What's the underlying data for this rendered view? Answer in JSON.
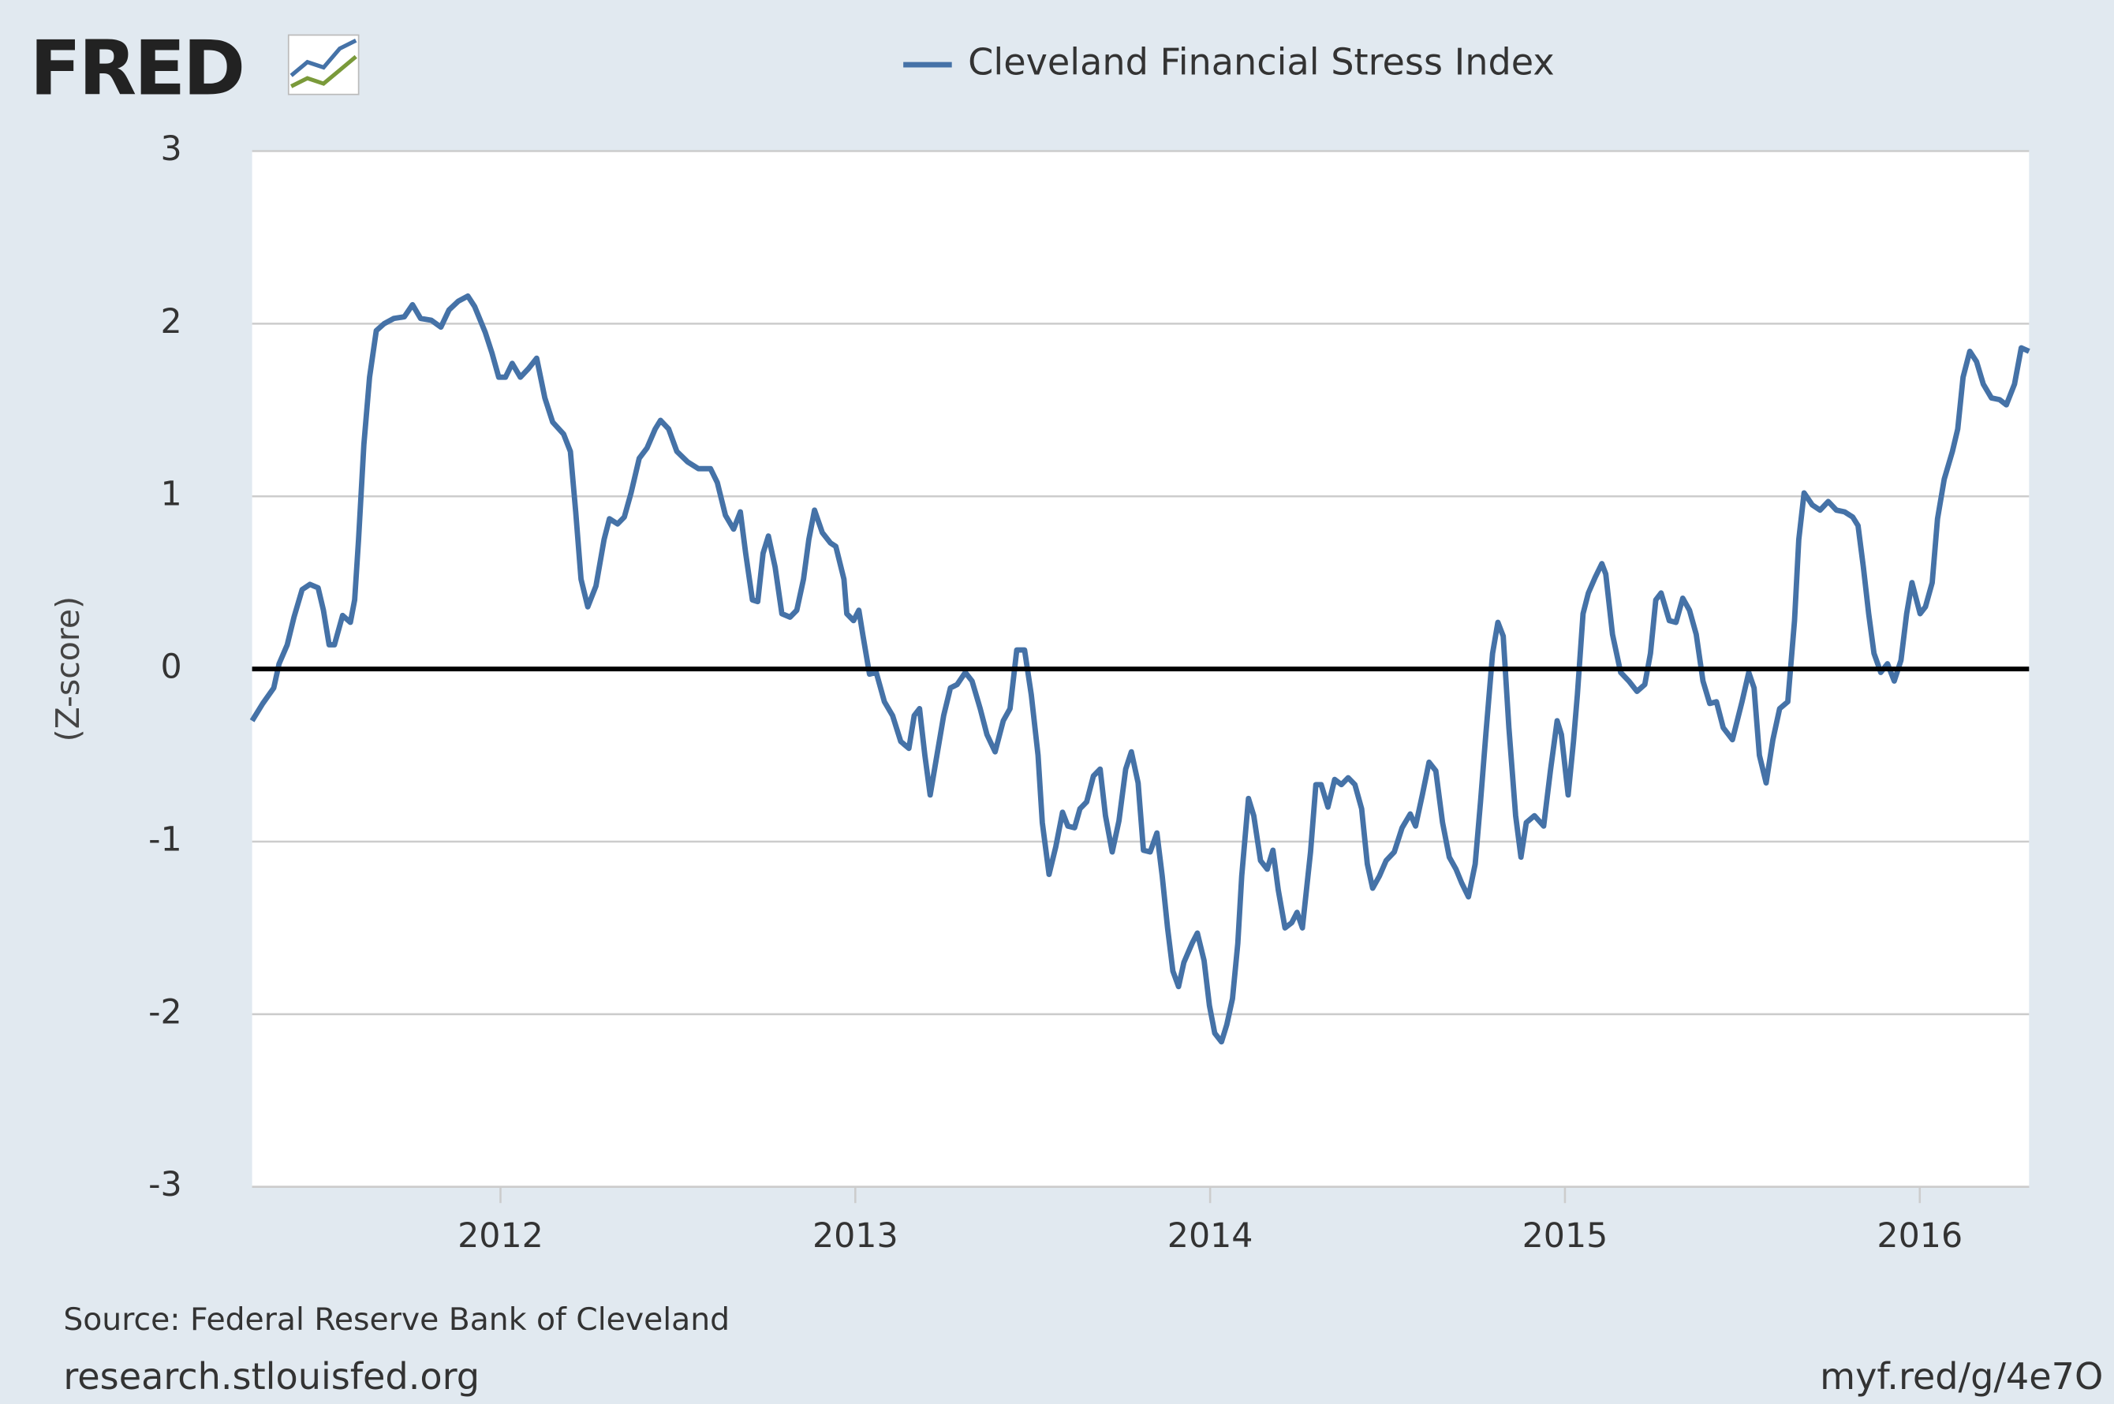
{
  "logo": "FRED",
  "source": "Source: Federal Reserve Bank of Cleveland",
  "site": "research.stlouisfed.org",
  "short_link": "myf.red/g/4e7O",
  "chart_data": {
    "type": "line",
    "y_label": "(Z-score)",
    "ylim": [
      -3,
      3
    ],
    "yticks": [
      3,
      2,
      1,
      0,
      -1,
      -2,
      -3
    ],
    "xlim": [
      2011.3,
      2016.308
    ],
    "xticks": [
      2012,
      2013,
      2014,
      2015,
      2016
    ],
    "grid": true,
    "zero_line": true,
    "legend": "top",
    "x": [
      2011.3,
      2011.33,
      2011.361,
      2011.376,
      2011.399,
      2011.418,
      2011.441,
      2011.463,
      2011.486,
      2011.501,
      2011.517,
      2011.532,
      2011.555,
      2011.577,
      2011.589,
      2011.6,
      2011.615,
      2011.631,
      2011.65,
      2011.672,
      2011.699,
      2011.729,
      2011.752,
      2011.775,
      2011.805,
      2011.832,
      2011.855,
      2011.881,
      2011.908,
      2011.927,
      2011.957,
      2011.976,
      2011.995,
      2012.014,
      2012.033,
      2012.056,
      2012.079,
      2012.102,
      2012.125,
      2012.147,
      2012.178,
      2012.197,
      2012.212,
      2012.227,
      2012.246,
      2012.269,
      2012.292,
      2012.307,
      2012.33,
      2012.349,
      2012.368,
      2012.391,
      2012.413,
      2012.436,
      2012.451,
      2012.474,
      2012.497,
      2012.527,
      2012.558,
      2012.592,
      2012.611,
      2012.634,
      2012.657,
      2012.676,
      2012.691,
      2012.71,
      2012.725,
      2012.74,
      2012.755,
      2012.774,
      2012.793,
      2012.816,
      2012.835,
      2012.854,
      2012.869,
      2012.885,
      2012.907,
      2012.93,
      2012.945,
      2012.968,
      2012.976,
      2012.995,
      2013.01,
      2013.021,
      2013.04,
      2013.059,
      2013.082,
      2013.105,
      2013.128,
      2013.151,
      2013.166,
      2013.181,
      2013.196,
      2013.211,
      2013.23,
      2013.249,
      2013.268,
      2013.287,
      2013.31,
      2013.329,
      2013.352,
      2013.371,
      2013.394,
      2013.417,
      2013.436,
      2013.455,
      2013.477,
      2013.496,
      2013.515,
      2013.527,
      2013.546,
      2013.565,
      2013.584,
      2013.599,
      2013.618,
      2013.633,
      2013.652,
      2013.671,
      2013.69,
      2013.705,
      2013.724,
      2013.743,
      2013.762,
      2013.778,
      2013.797,
      2013.812,
      2013.831,
      2013.85,
      2013.865,
      2013.88,
      2013.895,
      2013.911,
      2013.926,
      2013.949,
      2013.964,
      2013.983,
      2013.998,
      2014.013,
      2014.032,
      2014.047,
      2014.063,
      2014.078,
      2014.089,
      2014.108,
      2014.123,
      2014.142,
      2014.161,
      2014.177,
      2014.192,
      2014.211,
      2014.23,
      2014.245,
      2014.26,
      2014.283,
      2014.298,
      2014.313,
      2014.332,
      2014.351,
      2014.37,
      2014.389,
      2014.408,
      2014.427,
      2014.443,
      2014.458,
      2014.477,
      2014.496,
      2014.519,
      2014.541,
      2014.564,
      2014.579,
      2014.598,
      2014.617,
      2014.636,
      2014.655,
      2014.674,
      2014.693,
      2014.709,
      2014.728,
      2014.747,
      2014.762,
      2014.777,
      2014.796,
      2014.811,
      2014.826,
      2014.842,
      2014.861,
      2014.876,
      2014.891,
      2014.914,
      2014.94,
      2014.959,
      2014.978,
      2014.99,
      2015.009,
      2015.024,
      2015.035,
      2015.051,
      2015.066,
      2015.085,
      2015.104,
      2015.115,
      2015.134,
      2015.157,
      2015.18,
      2015.203,
      2015.225,
      2015.241,
      2015.256,
      2015.271,
      2015.294,
      2015.313,
      2015.332,
      2015.351,
      2015.37,
      2015.389,
      2015.408,
      2015.427,
      2015.446,
      2015.472,
      2015.499,
      2015.518,
      2015.533,
      2015.548,
      2015.567,
      2015.586,
      2015.605,
      2015.628,
      2015.647,
      2015.659,
      2015.674,
      2015.697,
      2015.719,
      2015.742,
      2015.765,
      2015.788,
      2015.811,
      2015.826,
      2015.841,
      2015.856,
      2015.871,
      2015.89,
      2015.909,
      2015.928,
      2015.947,
      2015.963,
      2015.978,
      2016.001,
      2016.016,
      2016.035,
      2016.05,
      2016.069,
      2016.092,
      2016.107,
      2016.122,
      2016.141,
      2016.16,
      2016.179,
      2016.202,
      2016.225,
      2016.244,
      2016.267,
      2016.286,
      2016.308
    ],
    "series": [
      {
        "name": "Cleveland Financial Stress Index",
        "color": "#4572a7",
        "values": [
          -0.3,
          -0.2,
          -0.11,
          0.03,
          0.14,
          0.3,
          0.46,
          0.49,
          0.47,
          0.34,
          0.14,
          0.14,
          0.31,
          0.27,
          0.4,
          0.75,
          1.3,
          1.69,
          1.96,
          2.0,
          2.03,
          2.04,
          2.11,
          2.03,
          2.02,
          1.98,
          2.08,
          2.13,
          2.16,
          2.1,
          1.95,
          1.83,
          1.69,
          1.69,
          1.77,
          1.69,
          1.74,
          1.8,
          1.57,
          1.43,
          1.36,
          1.26,
          0.91,
          0.52,
          0.36,
          0.48,
          0.75,
          0.87,
          0.84,
          0.88,
          1.02,
          1.22,
          1.28,
          1.39,
          1.44,
          1.39,
          1.26,
          1.2,
          1.16,
          1.16,
          1.08,
          0.89,
          0.81,
          0.91,
          0.67,
          0.4,
          0.39,
          0.67,
          0.77,
          0.59,
          0.32,
          0.3,
          0.34,
          0.52,
          0.75,
          0.92,
          0.79,
          0.73,
          0.71,
          0.52,
          0.32,
          0.28,
          0.34,
          0.2,
          -0.03,
          -0.02,
          -0.19,
          -0.27,
          -0.42,
          -0.46,
          -0.27,
          -0.23,
          -0.5,
          -0.73,
          -0.5,
          -0.27,
          -0.11,
          -0.09,
          -0.02,
          -0.07,
          -0.23,
          -0.38,
          -0.48,
          -0.3,
          -0.23,
          0.11,
          0.11,
          -0.15,
          -0.5,
          -0.89,
          -1.19,
          -1.03,
          -0.83,
          -0.91,
          -0.92,
          -0.81,
          -0.77,
          -0.62,
          -0.58,
          -0.85,
          -1.06,
          -0.88,
          -0.58,
          -0.48,
          -0.66,
          -1.05,
          -1.06,
          -0.95,
          -1.2,
          -1.5,
          -1.75,
          -1.84,
          -1.7,
          -1.59,
          -1.53,
          -1.69,
          -1.95,
          -2.11,
          -2.16,
          -2.06,
          -1.91,
          -1.59,
          -1.2,
          -0.75,
          -0.85,
          -1.11,
          -1.16,
          -1.05,
          -1.28,
          -1.5,
          -1.47,
          -1.41,
          -1.5,
          -1.06,
          -0.67,
          -0.67,
          -0.8,
          -0.64,
          -0.67,
          -0.63,
          -0.67,
          -0.81,
          -1.13,
          -1.27,
          -1.2,
          -1.11,
          -1.06,
          -0.92,
          -0.84,
          -0.91,
          -0.73,
          -0.54,
          -0.59,
          -0.89,
          -1.09,
          -1.16,
          -1.24,
          -1.32,
          -1.13,
          -0.77,
          -0.38,
          0.09,
          0.27,
          0.19,
          -0.34,
          -0.85,
          -1.09,
          -0.89,
          -0.85,
          -0.91,
          -0.59,
          -0.3,
          -0.38,
          -0.73,
          -0.42,
          -0.15,
          0.32,
          0.44,
          0.53,
          0.61,
          0.55,
          0.2,
          -0.02,
          -0.07,
          -0.13,
          -0.09,
          0.09,
          0.4,
          0.44,
          0.28,
          0.27,
          0.41,
          0.34,
          0.2,
          -0.07,
          -0.2,
          -0.19,
          -0.34,
          -0.41,
          -0.19,
          -0.02,
          -0.11,
          -0.5,
          -0.66,
          -0.41,
          -0.23,
          -0.19,
          0.28,
          0.75,
          1.02,
          0.95,
          0.92,
          0.97,
          0.92,
          0.91,
          0.88,
          0.83,
          0.59,
          0.32,
          0.09,
          -0.02,
          0.03,
          -0.07,
          0.05,
          0.32,
          0.5,
          0.32,
          0.36,
          0.5,
          0.87,
          1.1,
          1.26,
          1.39,
          1.69,
          1.84,
          1.78,
          1.65,
          1.57,
          1.56,
          1.53,
          1.65,
          1.86,
          1.84
        ]
      }
    ]
  }
}
